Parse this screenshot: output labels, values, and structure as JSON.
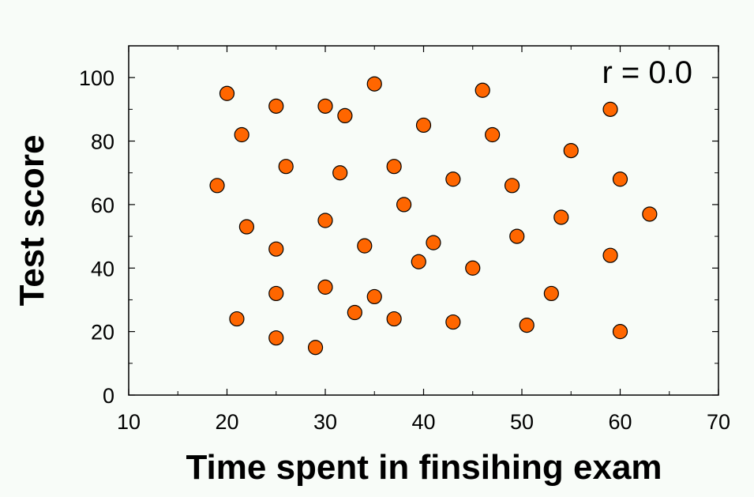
{
  "chart_data": {
    "type": "scatter",
    "xlabel": "Time spent in finsihing exam",
    "ylabel": "Test score",
    "annotation": "r = 0.0",
    "xlim": [
      10,
      70
    ],
    "ylim": [
      0,
      110
    ],
    "xticks": [
      10,
      20,
      30,
      40,
      50,
      60,
      70
    ],
    "yticks": [
      0,
      20,
      40,
      60,
      80,
      100
    ],
    "grid": false,
    "colors": {
      "marker": "#ff6600",
      "marker_edge": "#000000",
      "plot_background": "#f8fcf8"
    },
    "series": [
      {
        "points": [
          [
            19,
            66
          ],
          [
            20,
            95
          ],
          [
            21,
            24
          ],
          [
            21.5,
            82
          ],
          [
            22,
            53
          ],
          [
            25,
            91
          ],
          [
            25,
            46
          ],
          [
            25,
            32
          ],
          [
            25,
            18
          ],
          [
            26,
            72
          ],
          [
            29,
            15
          ],
          [
            30,
            91
          ],
          [
            30,
            55
          ],
          [
            30,
            34
          ],
          [
            31.5,
            70
          ],
          [
            32,
            88
          ],
          [
            33,
            26
          ],
          [
            34,
            47
          ],
          [
            35,
            98
          ],
          [
            35,
            31
          ],
          [
            37,
            72
          ],
          [
            37,
            24
          ],
          [
            38,
            60
          ],
          [
            39.5,
            42
          ],
          [
            40,
            85
          ],
          [
            41,
            48
          ],
          [
            43,
            68
          ],
          [
            43,
            23
          ],
          [
            45,
            40
          ],
          [
            46,
            96
          ],
          [
            47,
            82
          ],
          [
            49,
            66
          ],
          [
            49.5,
            50
          ],
          [
            50.5,
            22
          ],
          [
            53,
            32
          ],
          [
            54,
            56
          ],
          [
            55,
            77
          ],
          [
            59,
            90
          ],
          [
            59,
            44
          ],
          [
            60,
            68
          ],
          [
            60,
            20
          ],
          [
            63,
            57
          ]
        ]
      }
    ]
  }
}
